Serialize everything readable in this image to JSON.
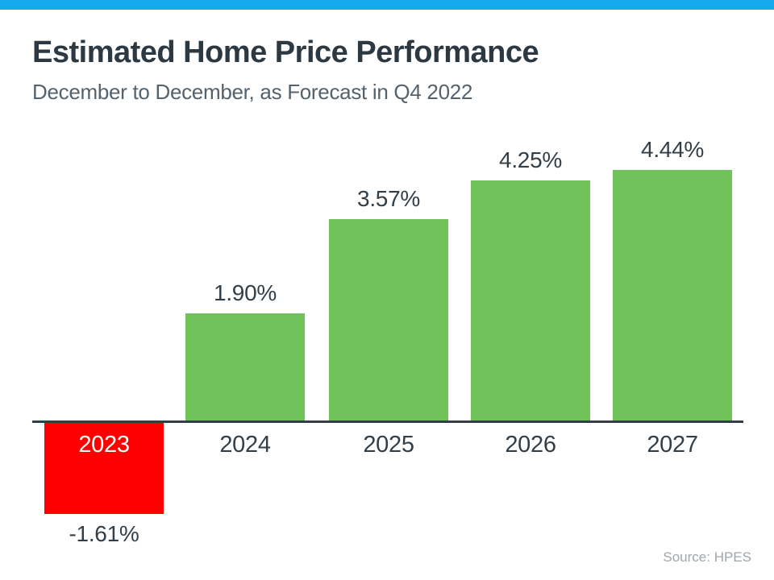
{
  "page": {
    "title": "Estimated Home Price Performance",
    "subtitle": "December to December, as Forecast in Q4 2022",
    "source": "Source: HPES"
  },
  "colors": {
    "accent_strip": "#14A9EB",
    "title_text": "#2C3842",
    "subtitle_text": "#54626D",
    "label_text": "#333F48",
    "axis_line": "#333E46",
    "positive_bar": "#70C25B",
    "negative_bar": "#FF0000",
    "year_on_negative": "#FFFFFF",
    "source_text": "#9FA6AC"
  },
  "chart_data": {
    "type": "bar",
    "title": "Estimated Home Price Performance",
    "subtitle": "December to December, as Forecast in Q4 2022",
    "categories": [
      "2023",
      "2024",
      "2025",
      "2026",
      "2027"
    ],
    "values": [
      -1.61,
      1.9,
      3.57,
      4.25,
      4.44
    ],
    "labels": [
      "-1.61%",
      "1.90%",
      "3.57%",
      "4.25%",
      "4.44%"
    ],
    "unit": "percent",
    "xlabel": "",
    "ylabel": "",
    "ylim": [
      -2,
      5
    ],
    "grid": false,
    "legend": false,
    "baseline": 0,
    "positive_color": "#70C25B",
    "negative_color": "#FF0000",
    "source": "Source: HPES"
  }
}
